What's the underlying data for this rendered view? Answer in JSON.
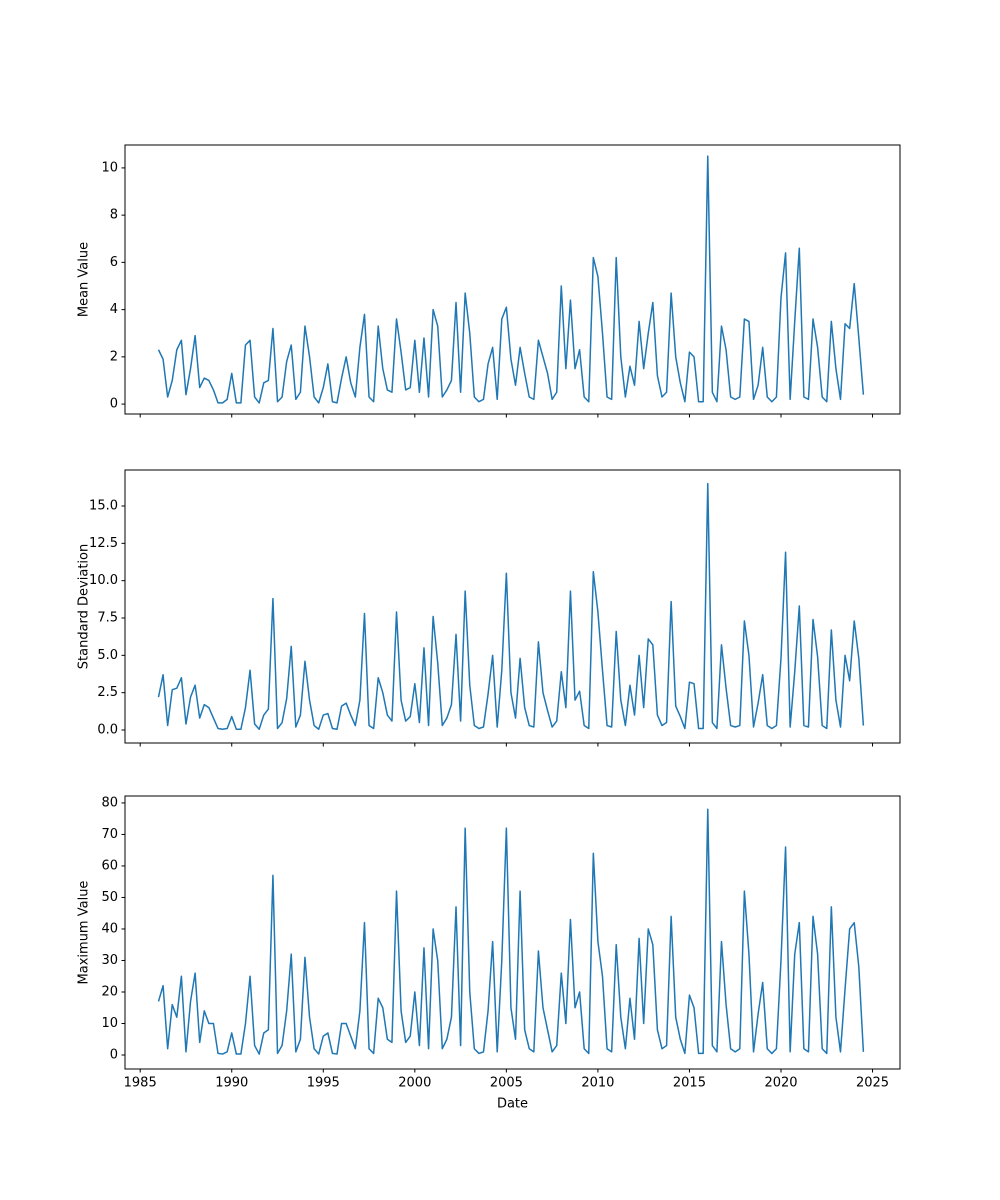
{
  "chart_data": [
    {
      "type": "line",
      "ylabel": "Mean Value",
      "color": "#1f77b4",
      "x": [
        1986,
        1986.25,
        1986.5,
        1986.75,
        1987,
        1987.25,
        1987.5,
        1987.75,
        1988,
        1988.25,
        1988.5,
        1988.75,
        1989,
        1989.25,
        1989.5,
        1989.75,
        1990,
        1990.25,
        1990.5,
        1990.75,
        1991,
        1991.25,
        1991.5,
        1991.75,
        1992,
        1992.25,
        1992.5,
        1992.75,
        1993,
        1993.25,
        1993.5,
        1993.75,
        1994,
        1994.25,
        1994.5,
        1994.75,
        1995,
        1995.25,
        1995.5,
        1995.75,
        1996,
        1996.25,
        1996.5,
        1996.75,
        1997,
        1997.25,
        1997.5,
        1997.75,
        1998,
        1998.25,
        1998.5,
        1998.75,
        1999,
        1999.25,
        1999.5,
        1999.75,
        2000,
        2000.25,
        2000.5,
        2000.75,
        2001,
        2001.25,
        2001.5,
        2001.75,
        2002,
        2002.25,
        2002.5,
        2002.75,
        2003,
        2003.25,
        2003.5,
        2003.75,
        2004,
        2004.25,
        2004.5,
        2004.75,
        2005,
        2005.25,
        2005.5,
        2005.75,
        2006,
        2006.25,
        2006.5,
        2006.75,
        2007,
        2007.25,
        2007.5,
        2007.75,
        2008,
        2008.25,
        2008.5,
        2008.75,
        2009,
        2009.25,
        2009.5,
        2009.75,
        2010,
        2010.25,
        2010.5,
        2010.75,
        2011,
        2011.25,
        2011.5,
        2011.75,
        2012,
        2012.25,
        2012.5,
        2012.75,
        2013,
        2013.25,
        2013.5,
        2013.75,
        2014,
        2014.25,
        2014.5,
        2014.75,
        2015,
        2015.25,
        2015.5,
        2015.75,
        2016,
        2016.25,
        2016.5,
        2016.75,
        2017,
        2017.25,
        2017.5,
        2017.75,
        2018,
        2018.25,
        2018.5,
        2018.75,
        2019,
        2019.25,
        2019.5,
        2019.75,
        2020,
        2020.25,
        2020.5,
        2020.75,
        2021,
        2021.25,
        2021.5,
        2021.75,
        2022,
        2022.25,
        2022.5,
        2022.75,
        2023,
        2023.25,
        2023.5,
        2023.75,
        2024,
        2024.25,
        2024.5
      ],
      "values": [
        2.3,
        1.9,
        0.3,
        1.0,
        2.3,
        2.7,
        0.4,
        1.5,
        2.9,
        0.7,
        1.1,
        1.0,
        0.6,
        0.05,
        0.05,
        0.2,
        1.3,
        0.05,
        0.05,
        2.5,
        2.7,
        0.3,
        0.05,
        0.9,
        1.0,
        3.2,
        0.1,
        0.3,
        1.8,
        2.5,
        0.2,
        0.5,
        3.3,
        2.0,
        0.3,
        0.05,
        0.7,
        1.7,
        0.1,
        0.05,
        1.1,
        2.0,
        0.9,
        0.3,
        2.4,
        3.8,
        0.3,
        0.1,
        3.3,
        1.5,
        0.6,
        0.5,
        3.6,
        2.2,
        0.6,
        0.7,
        2.7,
        0.5,
        2.8,
        0.3,
        4.0,
        3.3,
        0.3,
        0.6,
        1.0,
        4.3,
        0.5,
        4.7,
        3.0,
        0.3,
        0.1,
        0.2,
        1.7,
        2.4,
        0.2,
        3.6,
        4.1,
        1.9,
        0.8,
        2.4,
        1.3,
        0.3,
        0.2,
        2.7,
        2.0,
        1.3,
        0.2,
        0.5,
        5.0,
        1.5,
        4.4,
        1.5,
        2.3,
        0.3,
        0.1,
        6.2,
        5.4,
        3.0,
        0.3,
        0.2,
        6.2,
        2.0,
        0.3,
        1.6,
        0.8,
        3.5,
        1.5,
        3.0,
        4.3,
        1.2,
        0.3,
        0.5,
        4.7,
        2.0,
        0.9,
        0.1,
        2.2,
        2.0,
        0.1,
        0.1,
        10.5,
        0.5,
        0.1,
        3.3,
        2.3,
        0.3,
        0.2,
        0.3,
        3.6,
        3.5,
        0.2,
        0.8,
        2.4,
        0.3,
        0.1,
        0.3,
        4.5,
        6.4,
        0.2,
        3.5,
        6.6,
        0.3,
        0.2,
        3.6,
        2.4,
        0.3,
        0.1,
        3.5,
        1.5,
        0.2,
        3.4,
        3.2,
        5.1,
        2.8,
        0.4
      ],
      "xlim": [
        1984.17,
        2026.5
      ],
      "xticks": [
        1985,
        1990,
        1995,
        2000,
        2005,
        2010,
        2015,
        2020,
        2025
      ],
      "ylim": [
        -0.42,
        10.97
      ],
      "yticks": [
        0,
        2,
        4,
        6,
        8,
        10
      ]
    },
    {
      "type": "line",
      "ylabel": "Standard Deviation",
      "color": "#1f77b4",
      "x": [
        1986,
        1986.25,
        1986.5,
        1986.75,
        1987,
        1987.25,
        1987.5,
        1987.75,
        1988,
        1988.25,
        1988.5,
        1988.75,
        1989,
        1989.25,
        1989.5,
        1989.75,
        1990,
        1990.25,
        1990.5,
        1990.75,
        1991,
        1991.25,
        1991.5,
        1991.75,
        1992,
        1992.25,
        1992.5,
        1992.75,
        1993,
        1993.25,
        1993.5,
        1993.75,
        1994,
        1994.25,
        1994.5,
        1994.75,
        1995,
        1995.25,
        1995.5,
        1995.75,
        1996,
        1996.25,
        1996.5,
        1996.75,
        1997,
        1997.25,
        1997.5,
        1997.75,
        1998,
        1998.25,
        1998.5,
        1998.75,
        1999,
        1999.25,
        1999.5,
        1999.75,
        2000,
        2000.25,
        2000.5,
        2000.75,
        2001,
        2001.25,
        2001.5,
        2001.75,
        2002,
        2002.25,
        2002.5,
        2002.75,
        2003,
        2003.25,
        2003.5,
        2003.75,
        2004,
        2004.25,
        2004.5,
        2004.75,
        2005,
        2005.25,
        2005.5,
        2005.75,
        2006,
        2006.25,
        2006.5,
        2006.75,
        2007,
        2007.25,
        2007.5,
        2007.75,
        2008,
        2008.25,
        2008.5,
        2008.75,
        2009,
        2009.25,
        2009.5,
        2009.75,
        2010,
        2010.25,
        2010.5,
        2010.75,
        2011,
        2011.25,
        2011.5,
        2011.75,
        2012,
        2012.25,
        2012.5,
        2012.75,
        2013,
        2013.25,
        2013.5,
        2013.75,
        2014,
        2014.25,
        2014.5,
        2014.75,
        2015,
        2015.25,
        2015.5,
        2015.75,
        2016,
        2016.25,
        2016.5,
        2016.75,
        2017,
        2017.25,
        2017.5,
        2017.75,
        2018,
        2018.25,
        2018.5,
        2018.75,
        2019,
        2019.25,
        2019.5,
        2019.75,
        2020,
        2020.25,
        2020.5,
        2020.75,
        2021,
        2021.25,
        2021.5,
        2021.75,
        2022,
        2022.25,
        2022.5,
        2022.75,
        2023,
        2023.25,
        2023.5,
        2023.75,
        2024,
        2024.25,
        2024.5
      ],
      "values": [
        2.2,
        3.7,
        0.3,
        2.7,
        2.8,
        3.5,
        0.4,
        2.2,
        3.0,
        0.8,
        1.7,
        1.5,
        0.8,
        0.1,
        0.05,
        0.1,
        0.9,
        0.05,
        0.05,
        1.5,
        4.0,
        0.4,
        0.05,
        1.0,
        1.4,
        8.8,
        0.1,
        0.5,
        2.1,
        5.6,
        0.2,
        1.0,
        4.6,
        2.0,
        0.3,
        0.05,
        1.0,
        1.1,
        0.1,
        0.05,
        1.6,
        1.8,
        1.0,
        0.3,
        2.0,
        7.8,
        0.3,
        0.1,
        3.5,
        2.5,
        1.0,
        0.6,
        7.9,
        2.0,
        0.6,
        0.9,
        3.1,
        0.5,
        5.5,
        0.3,
        7.6,
        4.5,
        0.3,
        0.8,
        1.7,
        6.4,
        0.6,
        9.3,
        3.0,
        0.3,
        0.1,
        0.2,
        2.4,
        5.0,
        0.2,
        4.0,
        10.5,
        2.5,
        0.8,
        4.8,
        1.5,
        0.3,
        0.2,
        5.9,
        2.5,
        1.3,
        0.2,
        0.6,
        3.9,
        1.5,
        9.3,
        2.0,
        2.6,
        0.3,
        0.1,
        10.6,
        7.9,
        4.0,
        0.3,
        0.2,
        6.6,
        2.0,
        0.3,
        3.0,
        1.0,
        5.0,
        1.5,
        6.1,
        5.7,
        1.0,
        0.3,
        0.5,
        8.6,
        1.6,
        0.9,
        0.1,
        3.2,
        3.1,
        0.1,
        0.1,
        16.5,
        0.5,
        0.1,
        5.7,
        2.8,
        0.3,
        0.2,
        0.3,
        7.3,
        5.0,
        0.2,
        1.8,
        3.7,
        0.3,
        0.1,
        0.3,
        4.8,
        11.9,
        0.2,
        3.9,
        8.3,
        0.3,
        0.2,
        7.4,
        4.9,
        0.3,
        0.1,
        6.7,
        2.0,
        0.2,
        5.0,
        3.3,
        7.3,
        4.8,
        0.3
      ],
      "xlim": [
        1984.17,
        2026.5
      ],
      "xticks": [
        1985,
        1990,
        1995,
        2000,
        2005,
        2010,
        2015,
        2020,
        2025
      ],
      "ylim": [
        -0.87,
        17.41
      ],
      "yticks": [
        {
          "value": 0,
          "label": "0.0"
        },
        2.5,
        {
          "value": 5,
          "label": "5.0"
        },
        7.5,
        {
          "value": 10,
          "label": "10.0"
        },
        12.5,
        {
          "value": 15,
          "label": "15.0"
        }
      ]
    },
    {
      "type": "line",
      "ylabel": "Maximum Value",
      "xlabel": "Date",
      "color": "#1f77b4",
      "x": [
        1986,
        1986.25,
        1986.5,
        1986.75,
        1987,
        1987.25,
        1987.5,
        1987.75,
        1988,
        1988.25,
        1988.5,
        1988.75,
        1989,
        1989.25,
        1989.5,
        1989.75,
        1990,
        1990.25,
        1990.5,
        1990.75,
        1991,
        1991.25,
        1991.5,
        1991.75,
        1992,
        1992.25,
        1992.5,
        1992.75,
        1993,
        1993.25,
        1993.5,
        1993.75,
        1994,
        1994.25,
        1994.5,
        1994.75,
        1995,
        1995.25,
        1995.5,
        1995.75,
        1996,
        1996.25,
        1996.5,
        1996.75,
        1997,
        1997.25,
        1997.5,
        1997.75,
        1998,
        1998.25,
        1998.5,
        1998.75,
        1999,
        1999.25,
        1999.5,
        1999.75,
        2000,
        2000.25,
        2000.5,
        2000.75,
        2001,
        2001.25,
        2001.5,
        2001.75,
        2002,
        2002.25,
        2002.5,
        2002.75,
        2003,
        2003.25,
        2003.5,
        2003.75,
        2004,
        2004.25,
        2004.5,
        2004.75,
        2005,
        2005.25,
        2005.5,
        2005.75,
        2006,
        2006.25,
        2006.5,
        2006.75,
        2007,
        2007.25,
        2007.5,
        2007.75,
        2008,
        2008.25,
        2008.5,
        2008.75,
        2009,
        2009.25,
        2009.5,
        2009.75,
        2010,
        2010.25,
        2010.5,
        2010.75,
        2011,
        2011.25,
        2011.5,
        2011.75,
        2012,
        2012.25,
        2012.5,
        2012.75,
        2013,
        2013.25,
        2013.5,
        2013.75,
        2014,
        2014.25,
        2014.5,
        2014.75,
        2015,
        2015.25,
        2015.5,
        2015.75,
        2016,
        2016.25,
        2016.5,
        2016.75,
        2017,
        2017.25,
        2017.5,
        2017.75,
        2018,
        2018.25,
        2018.5,
        2018.75,
        2019,
        2019.25,
        2019.5,
        2019.75,
        2020,
        2020.25,
        2020.5,
        2020.75,
        2021,
        2021.25,
        2021.5,
        2021.75,
        2022,
        2022.25,
        2022.5,
        2022.75,
        2023,
        2023.25,
        2023.5,
        2023.75,
        2024,
        2024.25,
        2024.5
      ],
      "values": [
        17,
        22,
        2,
        16,
        12,
        25,
        1,
        17,
        26,
        4,
        14,
        10,
        10,
        0.5,
        0.3,
        1,
        7,
        0.3,
        0.3,
        10,
        25,
        3,
        0.3,
        7,
        8,
        57,
        0.5,
        3,
        14,
        32,
        1,
        5,
        31,
        12,
        2,
        0.3,
        6,
        7,
        0.5,
        0.3,
        10,
        10,
        6,
        2,
        14,
        42,
        2,
        0.5,
        18,
        15,
        5,
        4,
        52,
        14,
        4,
        6,
        20,
        3,
        34,
        2,
        40,
        30,
        2,
        5,
        12,
        47,
        3,
        72,
        20,
        2,
        0.5,
        1,
        14,
        36,
        1,
        30,
        72,
        15,
        5,
        52,
        8,
        2,
        1,
        33,
        15,
        8,
        1,
        3,
        26,
        10,
        43,
        15,
        20,
        2,
        0.5,
        64,
        36,
        25,
        2,
        1,
        35,
        12,
        2,
        18,
        5,
        37,
        10,
        40,
        35,
        8,
        2,
        3,
        44,
        12,
        5,
        0.5,
        19,
        15,
        0.5,
        0.5,
        78,
        3,
        1,
        36,
        16,
        2,
        1,
        2,
        52,
        32,
        1,
        13,
        23,
        2,
        0.5,
        2,
        30,
        66,
        1,
        32,
        42,
        2,
        1,
        44,
        32,
        2,
        0.5,
        47,
        12,
        1,
        21,
        40,
        42,
        28,
        1
      ],
      "xlim": [
        1984.17,
        2026.5
      ],
      "xticks": [
        1985,
        1990,
        1995,
        2000,
        2005,
        2010,
        2015,
        2020,
        2025
      ],
      "ylim": [
        -4.44,
        82.2
      ],
      "yticks": [
        0,
        10,
        20,
        30,
        40,
        50,
        60,
        70,
        80
      ]
    }
  ]
}
